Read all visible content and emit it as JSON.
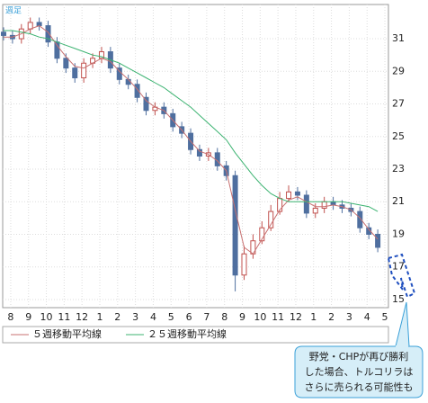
{
  "chart_data": {
    "type": "candlestick",
    "period_label": "週足",
    "x": [
      -0.4,
      0.1,
      0.6,
      1.1,
      1.6,
      2.1,
      2.6,
      3.1,
      3.6,
      4.1,
      4.6,
      5.1,
      5.6,
      6.1,
      6.6,
      7.1,
      7.6,
      8.1,
      8.6,
      9.1,
      9.6,
      10.1,
      10.6,
      11.1,
      11.6,
      12.1,
      12.6,
      13.1,
      13.6,
      14.1,
      14.6,
      15.1,
      15.6,
      16.1,
      16.6,
      17.1,
      17.6,
      18.1,
      18.6,
      19.1,
      19.6,
      20.1,
      20.6
    ],
    "open": [
      31.4,
      31.2,
      31.0,
      31.6,
      32.0,
      31.8,
      30.8,
      29.8,
      29.2,
      28.6,
      29.5,
      29.8,
      30.2,
      29.2,
      28.5,
      28.2,
      27.4,
      26.6,
      26.8,
      26.4,
      25.6,
      25.2,
      24.2,
      23.8,
      24.0,
      23.2,
      22.6,
      16.5,
      17.8,
      18.6,
      19.4,
      20.4,
      21.2,
      21.6,
      21.4,
      20.3,
      20.6,
      21.0,
      20.8,
      20.6,
      20.4,
      19.4,
      19.0
    ],
    "high": [
      31.7,
      31.5,
      31.9,
      32.3,
      32.3,
      32.1,
      31.1,
      30.1,
      29.5,
      29.8,
      30.1,
      30.5,
      30.5,
      29.5,
      28.8,
      28.5,
      27.7,
      27.1,
      27.1,
      26.7,
      25.9,
      25.5,
      24.5,
      24.3,
      24.3,
      23.5,
      22.9,
      18.3,
      19.0,
      19.8,
      20.8,
      21.6,
      22.0,
      21.9,
      21.7,
      20.9,
      21.3,
      21.3,
      21.1,
      20.9,
      20.7,
      19.7,
      19.3
    ],
    "low": [
      30.9,
      30.7,
      30.7,
      31.3,
      31.5,
      30.5,
      29.5,
      28.9,
      28.3,
      28.3,
      29.2,
      29.5,
      28.9,
      28.2,
      27.9,
      27.1,
      26.3,
      26.3,
      26.1,
      25.3,
      24.9,
      23.9,
      23.5,
      23.5,
      22.9,
      22.3,
      15.5,
      16.2,
      17.5,
      18.4,
      19.2,
      20.2,
      21.0,
      21.1,
      20.0,
      20.0,
      20.3,
      20.5,
      20.3,
      20.1,
      19.1,
      18.7,
      17.9
    ],
    "close": [
      31.2,
      31.0,
      31.6,
      32.0,
      31.8,
      30.8,
      29.8,
      29.2,
      28.6,
      29.5,
      29.8,
      30.2,
      29.2,
      28.5,
      28.2,
      27.4,
      26.6,
      26.8,
      26.4,
      25.6,
      25.2,
      24.2,
      23.8,
      24.0,
      23.2,
      22.6,
      16.5,
      17.8,
      18.6,
      19.4,
      20.4,
      21.2,
      21.6,
      21.4,
      20.3,
      20.6,
      21.0,
      20.8,
      20.6,
      20.4,
      19.4,
      19.0,
      18.2
    ],
    "up_color": "#c0504d",
    "down_color": "#4f6f9f",
    "series": [
      {
        "name": "５週移動平均線",
        "color": "#c87070",
        "values": [
          31.1,
          31.1,
          31.3,
          31.6,
          31.8,
          31.4,
          30.6,
          29.9,
          29.3,
          29.2,
          29.5,
          29.8,
          29.6,
          29.0,
          28.5,
          27.9,
          27.2,
          26.8,
          26.6,
          26.0,
          25.4,
          24.7,
          24.1,
          23.9,
          23.5,
          22.9,
          20.5,
          18.2,
          17.8,
          18.7,
          19.6,
          20.5,
          21.1,
          21.3,
          21.0,
          20.7,
          20.7,
          20.8,
          20.7,
          20.5,
          20.0,
          19.3,
          18.7
        ]
      },
      {
        "name": "２５週移動平均線",
        "color": "#3cb371",
        "values": [
          31.5,
          31.5,
          31.4,
          31.3,
          31.1,
          31.0,
          30.8,
          30.6,
          30.4,
          30.2,
          30.0,
          29.9,
          29.7,
          29.5,
          29.2,
          28.9,
          28.6,
          28.3,
          28.0,
          27.6,
          27.2,
          26.8,
          26.3,
          25.8,
          25.3,
          24.8,
          24.0,
          23.3,
          22.6,
          22.0,
          21.5,
          21.2,
          21.0,
          21.0,
          21.0,
          21.0,
          21.0,
          21.0,
          21.0,
          20.9,
          20.8,
          20.7,
          20.4
        ]
      }
    ],
    "xlim": [
      -0.45,
      21.2
    ],
    "ylim": [
      14.5,
      33.1
    ],
    "xticks": [
      {
        "value": 0,
        "label": "8"
      },
      {
        "value": 1,
        "label": "9"
      },
      {
        "value": 2,
        "label": "10"
      },
      {
        "value": 3,
        "label": "11"
      },
      {
        "value": 4,
        "label": "12"
      },
      {
        "value": 5,
        "label": "1"
      },
      {
        "value": 6,
        "label": "2"
      },
      {
        "value": 7,
        "label": "3"
      },
      {
        "value": 8,
        "label": "4"
      },
      {
        "value": 9,
        "label": "5"
      },
      {
        "value": 10,
        "label": "6"
      },
      {
        "value": 11,
        "label": "7"
      },
      {
        "value": 12,
        "label": "8"
      },
      {
        "value": 13,
        "label": "9"
      },
      {
        "value": 14,
        "label": "10"
      },
      {
        "value": 15,
        "label": "11"
      },
      {
        "value": 16,
        "label": "12"
      },
      {
        "value": 17,
        "label": "1"
      },
      {
        "value": 18,
        "label": "2"
      },
      {
        "value": 19,
        "label": "3"
      },
      {
        "value": 20,
        "label": "4"
      },
      {
        "value": 21,
        "label": "5"
      }
    ],
    "yticks": [
      15,
      17,
      19,
      21,
      23,
      25,
      27,
      29,
      31
    ],
    "grid": true,
    "annotation": [
      "野党・CHPが再び勝利",
      "した場合、トルコリラは",
      "さらに売られる可能性も"
    ]
  }
}
